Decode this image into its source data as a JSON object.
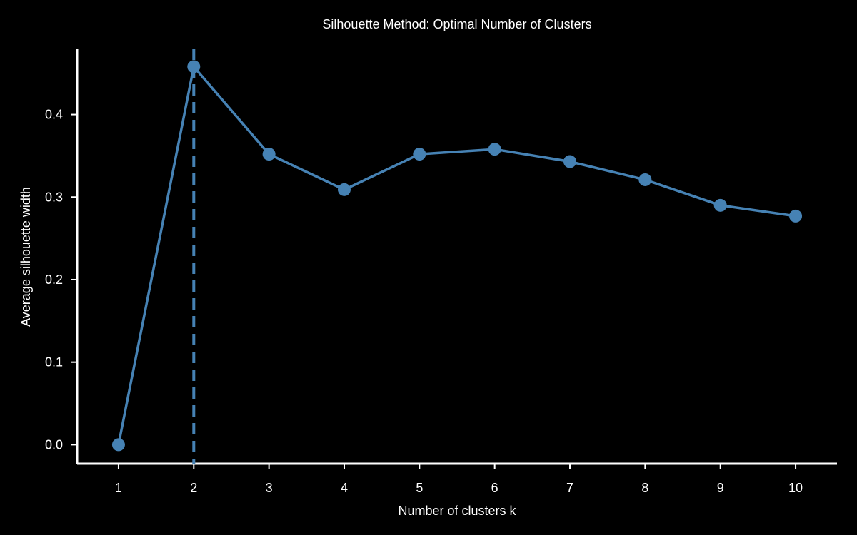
{
  "chart_data": {
    "type": "line",
    "title": "Silhouette Method: Optimal Number of Clusters",
    "xlabel": "Number of clusters k",
    "ylabel": "Average silhouette width",
    "x": [
      1,
      2,
      3,
      4,
      5,
      6,
      7,
      8,
      9,
      10
    ],
    "x_tick_labels": [
      "1",
      "2",
      "3",
      "4",
      "5",
      "6",
      "7",
      "8",
      "9",
      "10"
    ],
    "y_ticks": [
      0.0,
      0.1,
      0.2,
      0.3,
      0.4
    ],
    "y_tick_labels": [
      "0.0",
      "0.1",
      "0.2",
      "0.3",
      "0.4"
    ],
    "ylim": [
      -0.023,
      0.48
    ],
    "xlim": [
      0.45,
      10.55
    ],
    "series": [
      {
        "values": [
          0.0,
          0.458,
          0.352,
          0.309,
          0.352,
          0.358,
          0.343,
          0.321,
          0.29,
          0.277
        ],
        "color": "#4682B4"
      }
    ],
    "optimal_k": 2,
    "optimal_line_style": "dashed",
    "grid": false,
    "background": "#000000",
    "text_color": "#ffffff"
  }
}
